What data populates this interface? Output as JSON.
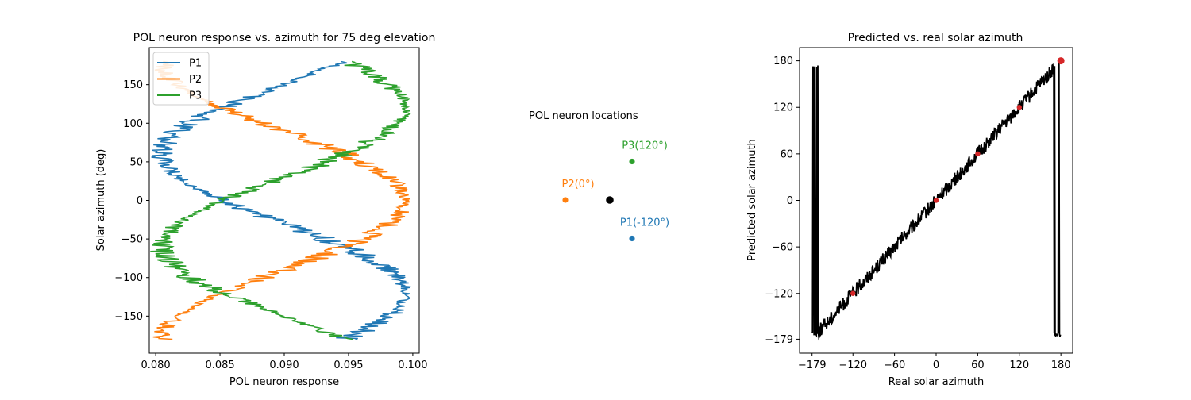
{
  "chart_data": [
    {
      "type": "line",
      "title": "POL neuron response vs. azimuth for 75 deg elevation",
      "xlabel": "POL neuron response",
      "ylabel": "Solar azimuth (deg)",
      "xlim": [
        0.0795,
        0.1005
      ],
      "ylim": [
        -198,
        198
      ],
      "xticks": [
        "0.080",
        "0.085",
        "0.090",
        "0.095",
        "0.100"
      ],
      "xtick_values": [
        0.08,
        0.085,
        0.09,
        0.095,
        0.1
      ],
      "yticks": [
        "−150",
        "−100",
        "−50",
        "0",
        "50",
        "100",
        "150"
      ],
      "ytick_values": [
        -150,
        -100,
        -50,
        0,
        50,
        100,
        150
      ],
      "legend_position": "top-left",
      "response_range": [
        0.0805,
        0.0994
      ],
      "azimuth_range": [
        -180,
        180
      ],
      "series": [
        {
          "name": "P1",
          "color": "#1f77b4",
          "peak_azimuth": -120
        },
        {
          "name": "P2",
          "color": "#ff7f0e",
          "peak_azimuth": 0
        },
        {
          "name": "P3",
          "color": "#2ca02c",
          "peak_azimuth": 120
        }
      ]
    },
    {
      "type": "scatter",
      "title": "POL neuron locations",
      "center_color": "#000000",
      "points": [
        {
          "label": "P2(0°)",
          "color": "#ff7f0e",
          "x": -1.0,
          "y": 0.0
        },
        {
          "label": "P3(120°)",
          "color": "#2ca02c",
          "x": 0.5,
          "y": 0.866
        },
        {
          "label": "P1(-120°)",
          "color": "#1f77b4",
          "x": 0.5,
          "y": -0.866
        }
      ]
    },
    {
      "type": "line",
      "title": "Predicted vs. real solar azimuth",
      "xlabel": "Real solar azimuth",
      "ylabel": "Predicted solar azimuth",
      "xlim": [
        -197,
        197
      ],
      "ylim": [
        -197,
        197
      ],
      "xticks": [
        "−179",
        "−120",
        "−60",
        "0",
        "60",
        "120",
        "180"
      ],
      "xtick_values": [
        -179,
        -120,
        -60,
        0,
        60,
        120,
        180
      ],
      "yticks": [
        "−179",
        "−120",
        "−60",
        "0",
        "60",
        "120",
        "180"
      ],
      "ytick_values": [
        -179,
        -120,
        -60,
        0,
        60,
        120,
        180
      ],
      "line_color": "#000000",
      "marker_color": "#d62728",
      "markers": [
        {
          "x": -120,
          "y": -120
        },
        {
          "x": 0,
          "y": 0
        },
        {
          "x": 60,
          "y": 60
        },
        {
          "x": 120,
          "y": 120
        },
        {
          "x": 180,
          "y": 180
        }
      ]
    }
  ]
}
